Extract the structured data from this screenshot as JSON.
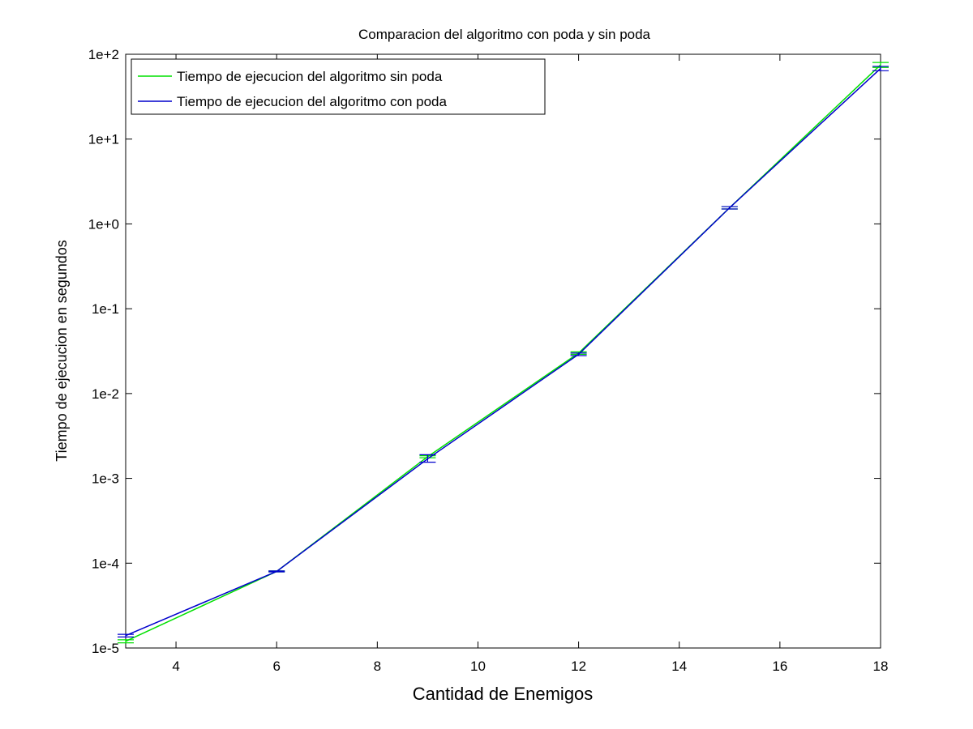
{
  "chart_data": {
    "type": "line",
    "title": "Comparacion del algoritmo con poda y sin poda",
    "xlabel": "Cantidad de Enemigos",
    "ylabel": "Tiempo de ejecucion en segundos",
    "x_ticks": [
      "4",
      "6",
      "8",
      "10",
      "12",
      "14",
      "16",
      "18"
    ],
    "y_ticks": [
      "1e-5",
      "1e-4",
      "1e-3",
      "1e-2",
      "1e-1",
      "1e+0",
      "1e+1",
      "1e+2"
    ],
    "xlim": [
      3,
      18
    ],
    "ylim": [
      1e-05,
      100
    ],
    "y_scale": "log",
    "grid": false,
    "legend_position": "top-left",
    "x": [
      3,
      6,
      9,
      12,
      15,
      18
    ],
    "series": [
      {
        "name": "Tiempo de ejecucion del algoritmo sin poda",
        "color": "#00e000",
        "values": [
          1.2e-05,
          8e-05,
          0.0018,
          0.03,
          1.55,
          75
        ],
        "err_low": [
          1.15e-05,
          7.9e-05,
          0.00175,
          0.029,
          1.5,
          70
        ],
        "err_high": [
          1.25e-05,
          8.1e-05,
          0.00185,
          0.031,
          1.6,
          80
        ]
      },
      {
        "name": "Tiempo de ejecucion del algoritmo con poda",
        "color": "#0000cc",
        "values": [
          1.4e-05,
          8e-05,
          0.0017,
          0.029,
          1.55,
          68
        ],
        "err_low": [
          1.35e-05,
          7.9e-05,
          0.00155,
          0.028,
          1.5,
          64
        ],
        "err_high": [
          1.45e-05,
          8.1e-05,
          0.0019,
          0.03,
          1.6,
          72
        ]
      }
    ]
  }
}
